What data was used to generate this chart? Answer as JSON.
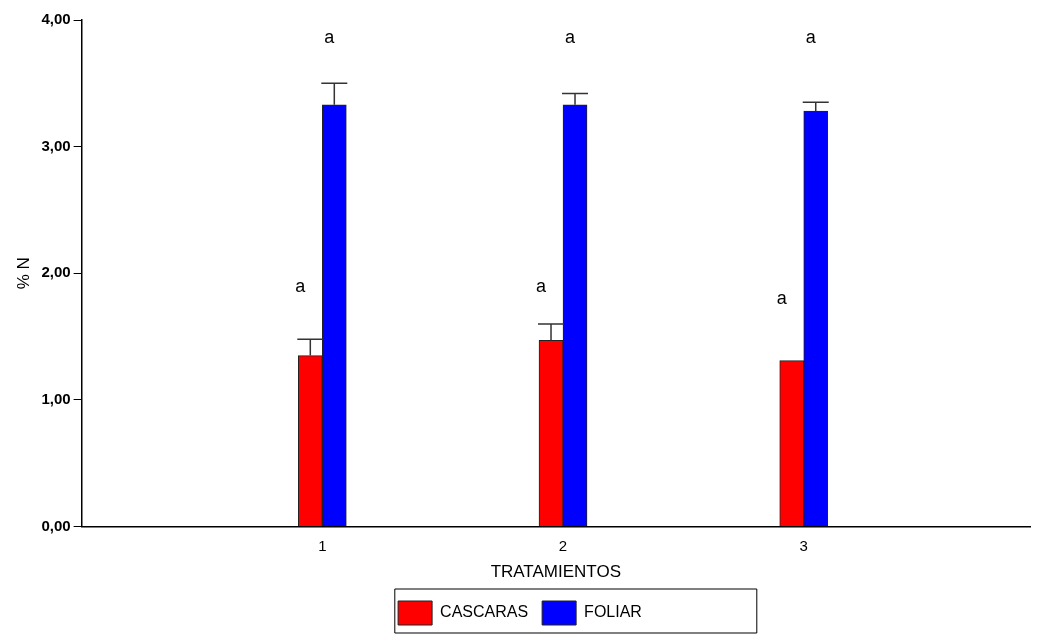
{
  "chart_data": {
    "type": "bar",
    "xlabel": "TRATAMIENTOS",
    "ylabel": "% N",
    "categories": [
      "1",
      "2",
      "3"
    ],
    "series": [
      {
        "name": "CASCARAS",
        "color": "#ff0000",
        "values": [
          1.35,
          1.47,
          1.31
        ],
        "errors": [
          [
            1.35,
            1.48
          ],
          [
            1.47,
            1.6
          ],
          null
        ]
      },
      {
        "name": "FOLIAR",
        "color": "#0000ff",
        "values": [
          3.33,
          3.33,
          3.28
        ],
        "errors": [
          [
            3.33,
            3.5
          ],
          [
            3.33,
            3.42
          ],
          [
            3.28,
            3.35
          ]
        ]
      }
    ],
    "ylim": [
      0,
      4
    ],
    "yticks": [
      {
        "value": 0,
        "label": "0,00"
      },
      {
        "value": 1,
        "label": "1,00"
      },
      {
        "value": 2,
        "label": "2,00"
      },
      {
        "value": 3,
        "label": "3,00"
      },
      {
        "value": 4,
        "label": "4,00"
      }
    ],
    "annotations": [
      {
        "text": "a",
        "x": "1",
        "y": 1.89
      },
      "a",
      {
        "text": "a",
        "x": "2",
        "y": 1.89
      },
      "a",
      {
        "text": "a",
        "x": "3",
        "y": 1.8
      },
      "a"
    ],
    "grid": false,
    "legend": "bottom"
  }
}
